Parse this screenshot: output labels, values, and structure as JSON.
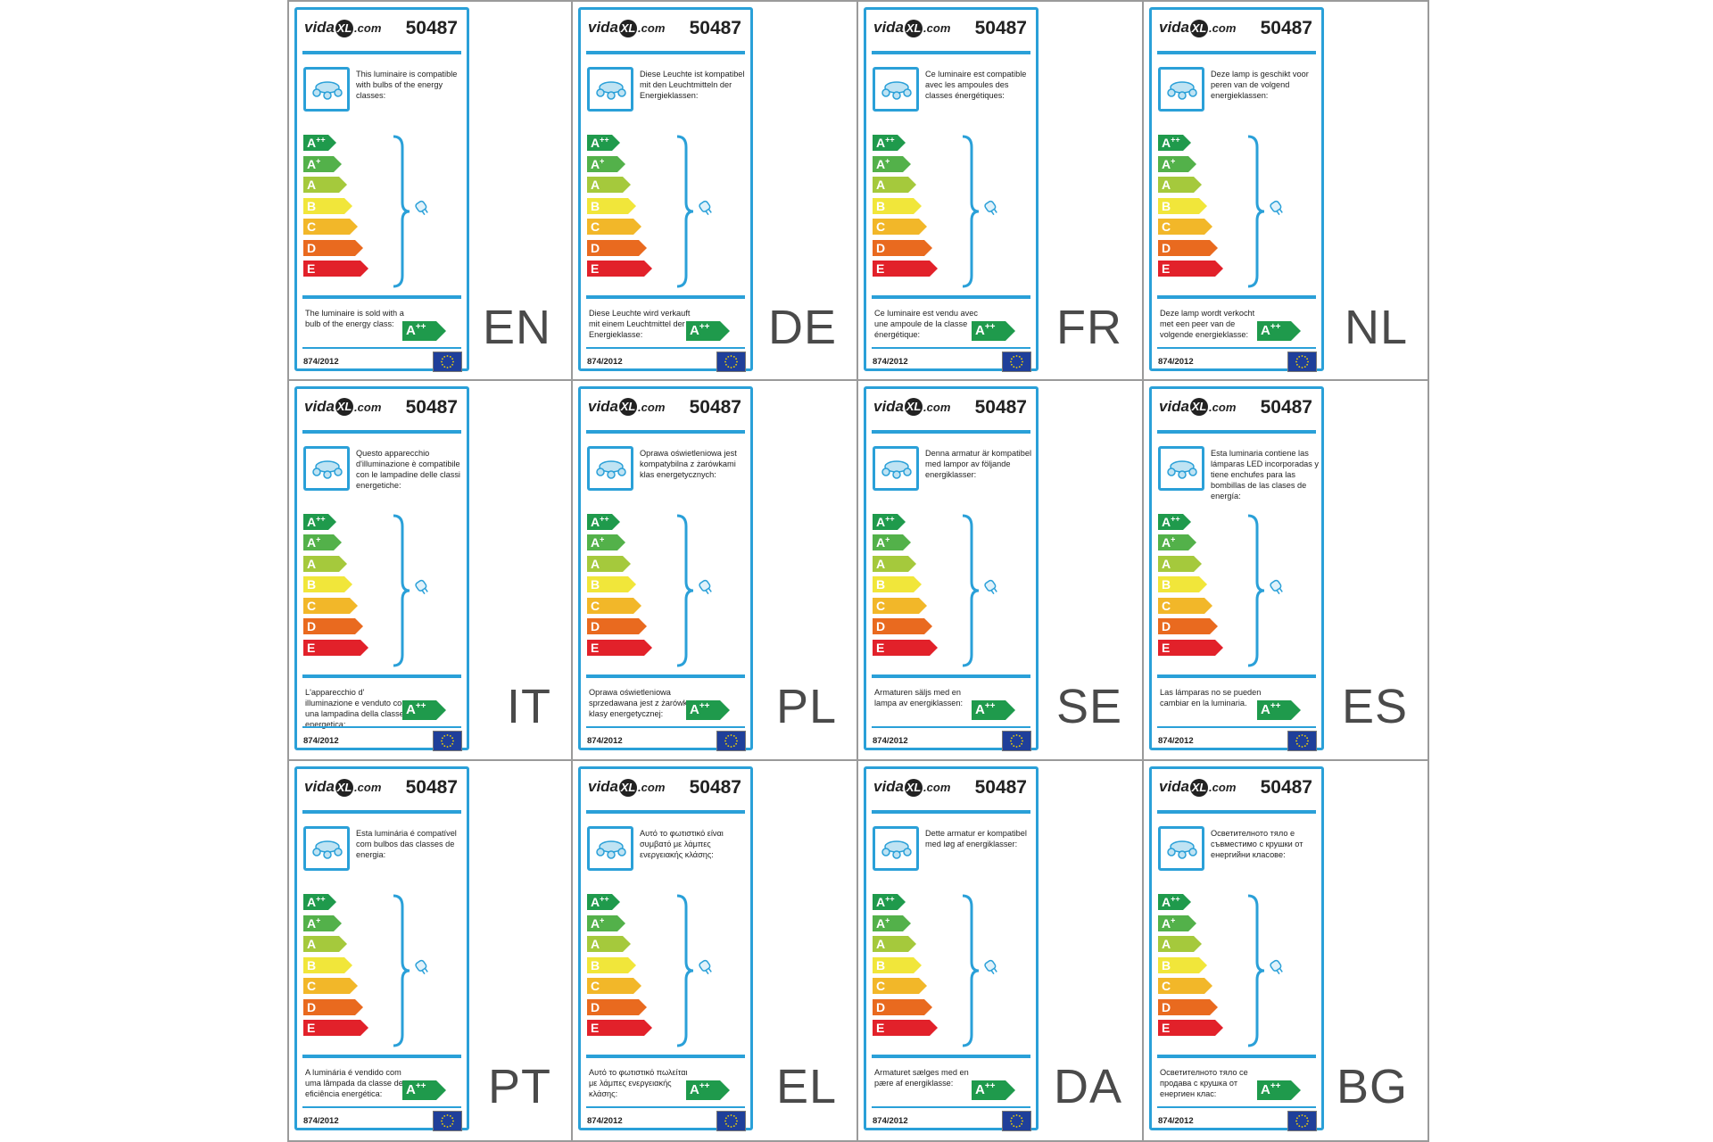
{
  "brand": {
    "logo_prefix": "vida",
    "logo_mark": "XL",
    "logo_suffix": ".com"
  },
  "model_number": "50487",
  "regulation": "874/2012",
  "energy_classes": [
    {
      "label": "A",
      "sup": "++",
      "color": "#1f9a4c"
    },
    {
      "label": "A",
      "sup": "+",
      "color": "#53b14a"
    },
    {
      "label": "A",
      "sup": "",
      "color": "#a5c93c"
    },
    {
      "label": "B",
      "sup": "",
      "color": "#f1e63a"
    },
    {
      "label": "C",
      "sup": "",
      "color": "#f2b729"
    },
    {
      "label": "D",
      "sup": "",
      "color": "#e96a1f"
    },
    {
      "label": "E",
      "sup": "",
      "color": "#e2212a"
    }
  ],
  "sold_class": {
    "label": "A",
    "sup": "++"
  },
  "colors": {
    "frame": "#2aa0d8",
    "eu_flag": "#1f3f9a",
    "eu_stars": "#f5d400"
  },
  "icons": {
    "lamp": "ceiling-lamp-icon",
    "bulb": "bulb-icon",
    "flag": "eu-flag-icon"
  },
  "labels": [
    {
      "code": "EN",
      "intro": "This luminaire is compatible with bulbs of the energy classes:",
      "sold": "The luminaire is sold with a bulb of the energy class:"
    },
    {
      "code": "DE",
      "intro": "Diese Leuchte ist kompatibel mit den Leuchtmitteln der Energieklassen:",
      "sold": "Diese Leuchte wird verkauft mit einem Leuchtmittel der Energieklasse:"
    },
    {
      "code": "FR",
      "intro": "Ce luminaire est compatible avec les ampoules des classes énergétiques:",
      "sold": "Ce luminaire est vendu avec une ampoule de la classe énergétique:"
    },
    {
      "code": "NL",
      "intro": "Deze lamp is geschikt voor peren van de volgend energieklassen:",
      "sold": "Deze lamp wordt verkocht met een peer van de volgende energieklasse:"
    },
    {
      "code": "IT",
      "intro": "Questo apparecchio d'illuminazione è compatibile con le lampadine delle classi energetiche:",
      "sold": "L'apparecchio d' illuminazione e venduto con una lampadina della classe energetica:"
    },
    {
      "code": "PL",
      "intro": "Oprawa oświetleniowa jest kompatybilna z żarówkami klas energetycznych:",
      "sold": "Oprawa oświetleniowa sprzedawana jest z żarówką klasy energetycznej:"
    },
    {
      "code": "SE",
      "intro": "Denna armatur är kompatibel med lampor av följande energiklasser:",
      "sold": "Armaturen säljs med en lampa av energiklassen:"
    },
    {
      "code": "ES",
      "intro": "Esta luminaria contiene las lámparas LED incorporadas y tiene enchufes para las bombillas de las clases de energía:",
      "sold": "Las lámparas no se pueden cambiar en la luminaria."
    },
    {
      "code": "PT",
      "intro": "Esta luminária é compatível com bulbos das classes de energia:",
      "sold": "A luminária é vendido com uma lâmpada da classe de eficiência energética:"
    },
    {
      "code": "EL",
      "intro": "Αυτό το φωτιστικό είναι συμβατό με λάμπες ενεργειακής κλάσης:",
      "sold": "Αυτό το φωτιστικό πωλείται με λάμπες ενεργειακής κλάσης:"
    },
    {
      "code": "DA",
      "intro": "Dette armatur er kompatibel med løg af energiklasser:",
      "sold": "Armaturet sælges med en pære af energiklasse:"
    },
    {
      "code": "BG",
      "intro": "Осветителното тяло е съвместимо с крушки от енергийни класове:",
      "sold": "Осветителното тяло се продава с крушка от енергиен клас:"
    }
  ]
}
